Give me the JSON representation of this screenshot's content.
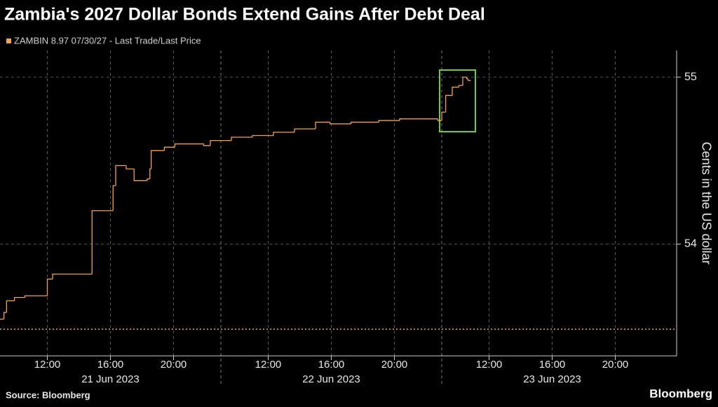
{
  "chart_data": {
    "type": "line",
    "title": "Zambia's 2027 Dollar Bonds Extend Gains After Debt Deal",
    "y_label": "Cents in the US dollar",
    "source": "Source: Bloomberg",
    "brand": "Bloomberg",
    "x": [
      "2023-06-21 09:00",
      "2023-06-21 09:15",
      "2023-06-21 09:25",
      "2023-06-21 09:55",
      "2023-06-21 10:35",
      "2023-06-21 11:55",
      "2023-06-21 12:00",
      "2023-06-21 12:20",
      "2023-06-21 14:40",
      "2023-06-21 14:50",
      "2023-06-21 16:05",
      "2023-06-21 16:10",
      "2023-06-21 16:20",
      "2023-06-21 17:00",
      "2023-06-21 17:30",
      "2023-06-21 18:20",
      "2023-06-21 18:30",
      "2023-06-21 18:35",
      "2023-06-21 19:25",
      "2023-06-21 20:05",
      "2023-06-21 21:55",
      "2023-06-21 22:20",
      "2023-06-22 09:15",
      "2023-06-22 09:40",
      "2023-06-22 11:00",
      "2023-06-22 12:20",
      "2023-06-22 13:40",
      "2023-06-22 15:00",
      "2023-06-22 15:55",
      "2023-06-22 17:15",
      "2023-06-22 19:00",
      "2023-06-22 20:20",
      "2023-06-22 21:40",
      "2023-06-22 22:45",
      "2023-06-23 09:00",
      "2023-06-23 09:15",
      "2023-06-23 09:40",
      "2023-06-23 10:05",
      "2023-06-23 10:20",
      "2023-06-23 10:35",
      "2023-06-23 10:40"
    ],
    "series": [
      {
        "name": "ZAMBIN 8.97 07/30/27 - Last Trade/Last Price",
        "color": "#f5a04a",
        "values": [
          53.55,
          53.59,
          53.66,
          53.68,
          53.69,
          53.69,
          53.79,
          53.82,
          53.82,
          54.2,
          54.2,
          54.35,
          54.47,
          54.45,
          54.38,
          54.39,
          54.45,
          54.56,
          54.58,
          54.6,
          54.59,
          54.62,
          54.62,
          54.64,
          54.65,
          54.67,
          54.69,
          54.73,
          54.72,
          54.73,
          54.74,
          54.75,
          54.75,
          54.74,
          54.79,
          54.89,
          54.94,
          54.95,
          55.0,
          54.99,
          54.98
        ]
      }
    ],
    "reference_line": 53.49,
    "xlim": [
      "2023-06-21 09:00",
      "2023-06-23 23:00"
    ],
    "xticks": [
      {
        "value": "2023-06-21 12:00",
        "label": "12:00"
      },
      {
        "value": "2023-06-21 16:00",
        "label": "16:00"
      },
      {
        "value": "2023-06-21 20:00",
        "label": "20:00"
      },
      {
        "value": "2023-06-22 12:00",
        "label": "12:00"
      },
      {
        "value": "2023-06-22 16:00",
        "label": "16:00"
      },
      {
        "value": "2023-06-22 20:00",
        "label": "20:00"
      },
      {
        "value": "2023-06-23 12:00",
        "label": "12:00"
      },
      {
        "value": "2023-06-23 16:00",
        "label": "16:00"
      },
      {
        "value": "2023-06-23 20:00",
        "label": "20:00"
      }
    ],
    "x_groups": [
      "21 Jun 2023",
      "22 Jun 2023",
      "23 Jun 2023"
    ],
    "ylim": [
      53.33,
      55.16
    ],
    "yticks": [
      54,
      55
    ],
    "grid": true
  }
}
